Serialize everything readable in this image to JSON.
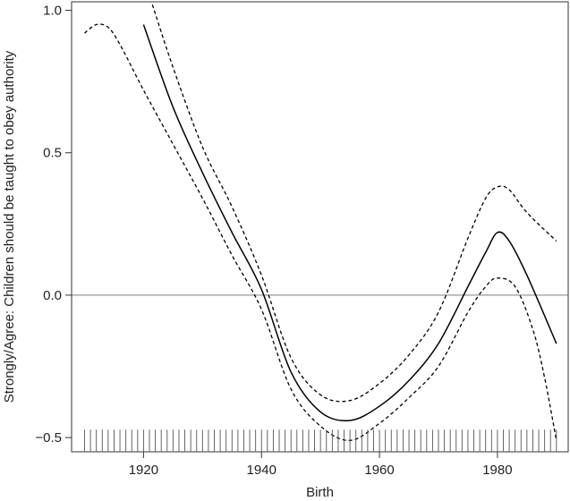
{
  "chart_data": {
    "type": "line",
    "title": "",
    "xlabel": "Birth",
    "ylabel": "Strongly/Agree: Children should be taught to obey authority",
    "xlim": [
      1907.8,
      1992
    ],
    "ylim": [
      -0.55,
      1.03
    ],
    "x_ticks": [
      1920,
      1940,
      1960,
      1980
    ],
    "x_tick_labels": [
      "1920",
      "1940",
      "1960",
      "1980"
    ],
    "y_ticks": [
      -0.5,
      0.0,
      0.5,
      1.0
    ],
    "y_tick_labels": [
      "−0.5",
      "0.0",
      "0.5",
      "1.0"
    ],
    "reference_line": {
      "y": 0.0,
      "color": "#999999"
    },
    "grid": false,
    "legend": "none",
    "rug": {
      "from": 1910,
      "to": 1990,
      "step": 1,
      "y": -0.51
    },
    "series": [
      {
        "style": "solid",
        "color": "#000000",
        "x": [
          1920,
          1925,
          1930,
          1935,
          1940,
          1945,
          1950,
          1955,
          1960,
          1965,
          1970,
          1975,
          1978,
          1980,
          1982,
          1985,
          1990
        ],
        "y": [
          0.95,
          0.66,
          0.43,
          0.22,
          0.02,
          -0.27,
          -0.41,
          -0.44,
          -0.39,
          -0.3,
          -0.17,
          0.03,
          0.15,
          0.22,
          0.19,
          0.07,
          -0.17
        ]
      },
      {
        "style": "dashed",
        "color": "#000000",
        "x": [
          1921.5,
          1925,
          1930,
          1935,
          1940,
          1945,
          1950,
          1955,
          1960,
          1965,
          1970,
          1975,
          1978,
          1980,
          1982,
          1985,
          1990
        ],
        "y": [
          1.02,
          0.8,
          0.52,
          0.31,
          0.07,
          -0.22,
          -0.35,
          -0.37,
          -0.31,
          -0.21,
          -0.06,
          0.2,
          0.34,
          0.38,
          0.37,
          0.29,
          0.19
        ]
      },
      {
        "style": "dashed",
        "color": "#000000",
        "x": [
          1910,
          1912,
          1914,
          1916,
          1920,
          1925,
          1930,
          1935,
          1940,
          1945,
          1950,
          1955,
          1960,
          1965,
          1970,
          1975,
          1978,
          1980,
          1983,
          1986,
          1988,
          1990
        ],
        "y": [
          0.92,
          0.95,
          0.94,
          0.88,
          0.72,
          0.53,
          0.34,
          0.14,
          -0.05,
          -0.33,
          -0.46,
          -0.51,
          -0.45,
          -0.36,
          -0.25,
          -0.06,
          0.03,
          0.06,
          0.03,
          -0.12,
          -0.29,
          -0.51
        ]
      }
    ]
  }
}
